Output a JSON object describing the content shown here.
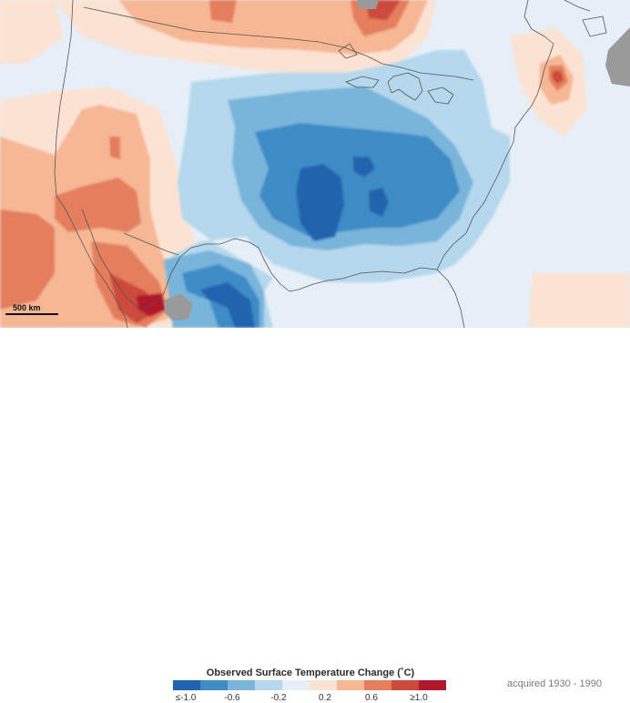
{
  "legend": {
    "title": "Observed Surface Temperature Change (˚C)",
    "ticks": [
      "≤-1.0",
      "-0.6",
      "-0.2",
      "0.2",
      "0.6",
      "≥1.0"
    ],
    "colors": [
      "#2063ae",
      "#3e8cc6",
      "#79b4db",
      "#b5d8ec",
      "#e6eff8",
      "#fbe3d4",
      "#f6b795",
      "#e47e5b",
      "#cb4a3c",
      "#b2182b"
    ]
  },
  "acquired": "acquired 1930 - 1990",
  "scale": {
    "label": "500 km"
  },
  "map": {
    "background_color": "#e6eff8",
    "nodata_color": "#9a9a9a",
    "border_color": "#555555"
  }
}
